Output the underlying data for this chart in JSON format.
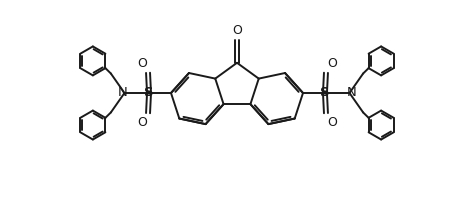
{
  "bg_color": "#ffffff",
  "line_color": "#1a1a1a",
  "line_width": 1.4,
  "figsize": [
    4.74,
    2.23
  ],
  "dpi": 100,
  "xlim": [
    0,
    9.48
  ],
  "ylim": [
    0,
    4.46
  ]
}
